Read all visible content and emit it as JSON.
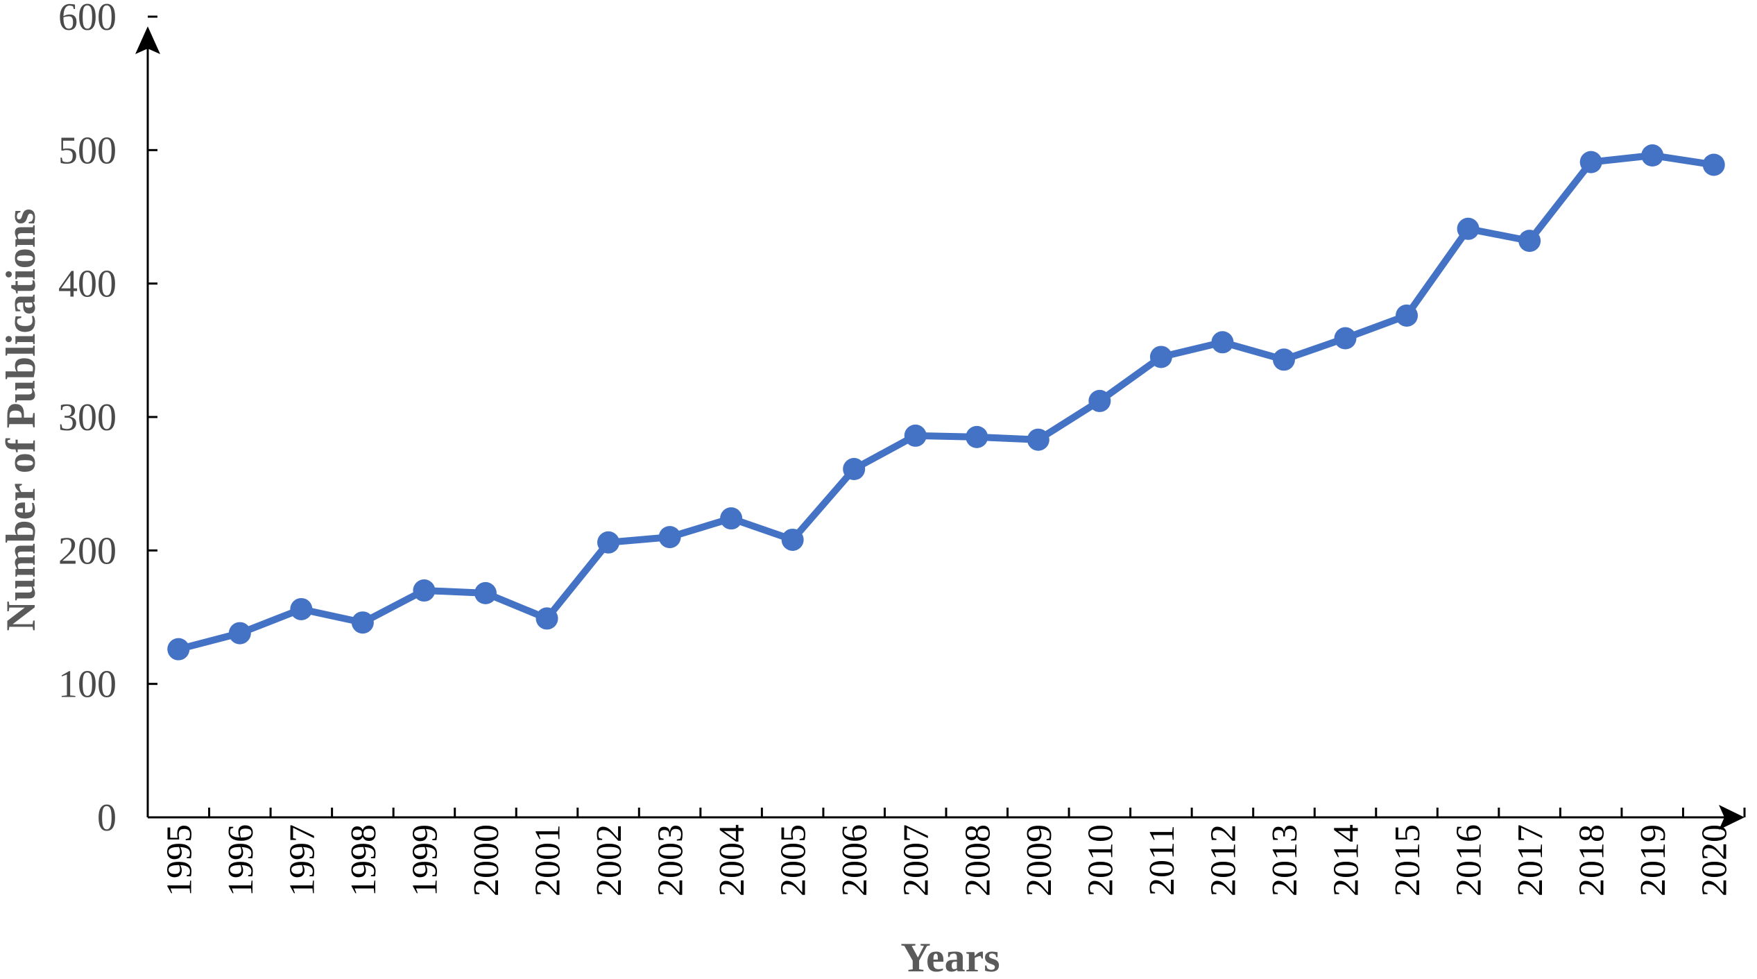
{
  "chart_data": {
    "type": "line",
    "title": "",
    "xlabel": "Years",
    "ylabel": "Number of Publications",
    "ylim": [
      0,
      600
    ],
    "yticks": [
      0,
      100,
      200,
      300,
      400,
      500,
      600
    ],
    "grid": false,
    "categories": [
      "1995",
      "1996",
      "1997",
      "1998",
      "1999",
      "2000",
      "2001",
      "2002",
      "2003",
      "2004",
      "2005",
      "2006",
      "2007",
      "2008",
      "2009",
      "2010",
      "2011",
      "2012",
      "2013",
      "2014",
      "2015",
      "2016",
      "2017",
      "2018",
      "2019",
      "2020"
    ],
    "series": [
      {
        "color": "#4472C4",
        "values": [
          126,
          138,
          156,
          146,
          170,
          168,
          149,
          206,
          210,
          224,
          208,
          261,
          286,
          285,
          283,
          312,
          345,
          356,
          343,
          359,
          376,
          441,
          432,
          491,
          496,
          489
        ]
      }
    ]
  }
}
